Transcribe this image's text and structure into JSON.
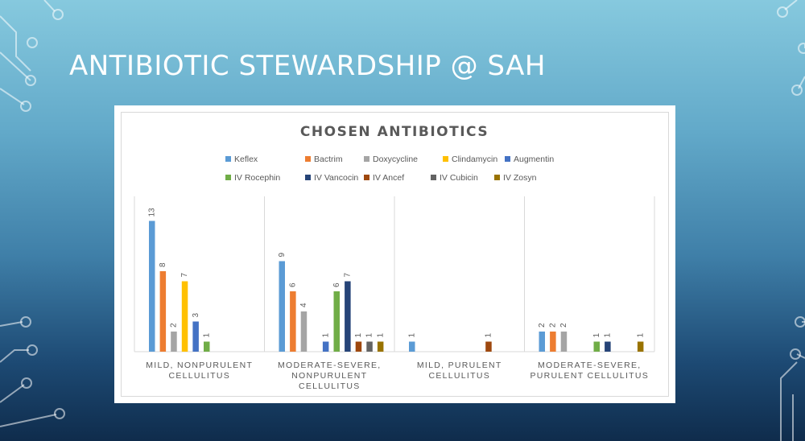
{
  "slide": {
    "title": "ANTIBIOTIC STEWARDSHIP @ SAH"
  },
  "chart_data": {
    "type": "bar",
    "title": "CHOSEN ANTIBIOTICS",
    "legend_position": "top",
    "grid": false,
    "ylim": [
      0,
      14
    ],
    "categories": [
      [
        "MILD, NONPURULENT",
        "CELLULITUS"
      ],
      [
        "MODERATE-SEVERE,",
        "NONPURULENT",
        "CELLULITUS"
      ],
      [
        "MILD, PURULENT",
        "CELLULITUS"
      ],
      [
        "MODERATE-SEVERE,",
        "PURULENT CELLULITUS"
      ]
    ],
    "series": [
      {
        "name": "Keflex",
        "color": "#5b9bd5",
        "values": [
          13,
          9,
          1,
          2
        ]
      },
      {
        "name": "Bactrim",
        "color": "#ed7d31",
        "values": [
          8,
          6,
          null,
          2
        ]
      },
      {
        "name": "Doxycycline",
        "color": "#a5a5a5",
        "values": [
          2,
          4,
          null,
          2
        ]
      },
      {
        "name": "Clindamycin",
        "color": "#ffc000",
        "values": [
          7,
          null,
          null,
          null
        ]
      },
      {
        "name": "Augmentin",
        "color": "#4472c4",
        "values": [
          3,
          1,
          null,
          null
        ]
      },
      {
        "name": "IV Rocephin",
        "color": "#70ad47",
        "values": [
          1,
          6,
          null,
          1
        ]
      },
      {
        "name": "IV Vancocin",
        "color": "#264478",
        "values": [
          null,
          7,
          null,
          1
        ]
      },
      {
        "name": "IV Ancef",
        "color": "#9e480e",
        "values": [
          null,
          1,
          1,
          null
        ]
      },
      {
        "name": "IV Cubicin",
        "color": "#636363",
        "values": [
          null,
          1,
          null,
          null
        ]
      },
      {
        "name": "IV Zosyn",
        "color": "#997300",
        "values": [
          null,
          1,
          null,
          1
        ]
      }
    ]
  }
}
